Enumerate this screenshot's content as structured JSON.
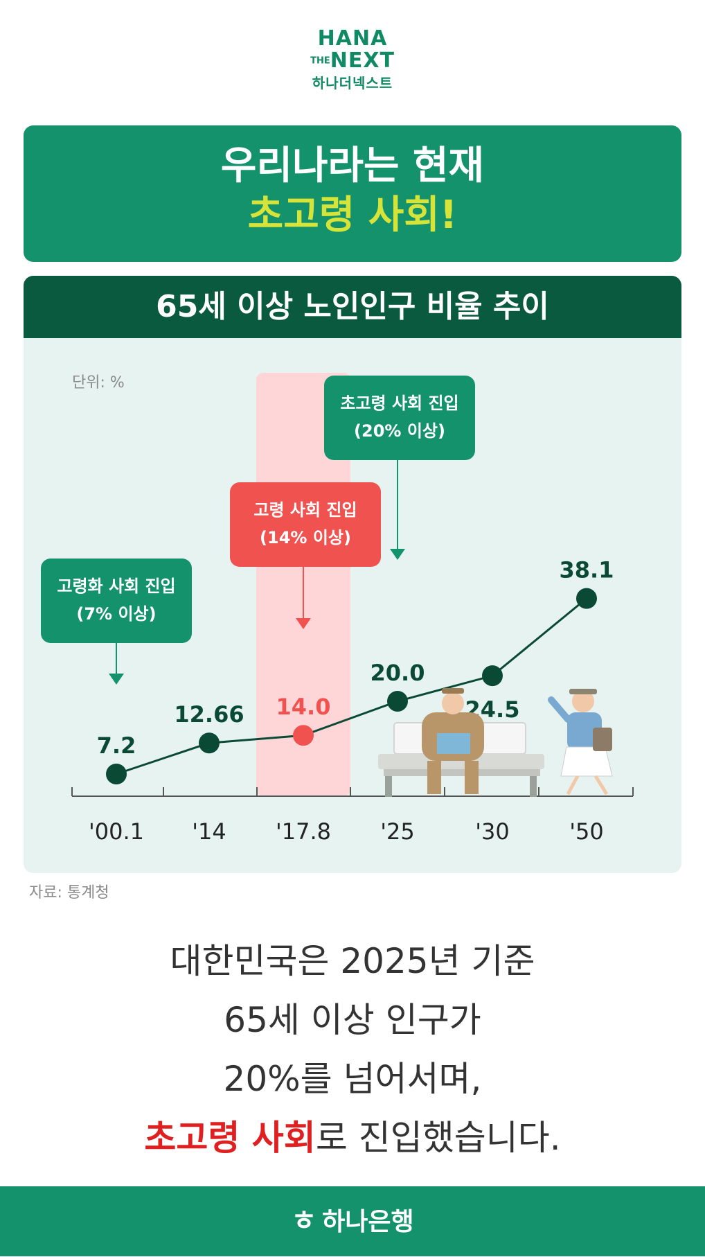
{
  "logo": {
    "line1": "HANA",
    "line2_small": "THE",
    "line2": "NEXT",
    "line3": "하나더넥스트"
  },
  "headline": {
    "line1": "우리나라는 현재",
    "line2": "초고령 사회!"
  },
  "panel_title": "65세 이상 노인인구 비율 추이",
  "chart_data": {
    "type": "line",
    "unit_label": "단위: %",
    "categories": [
      "'00.1",
      "'14",
      "'17.8",
      "'25",
      "'30",
      "'50"
    ],
    "values": [
      7.2,
      12.66,
      14.0,
      20.0,
      24.5,
      38.1
    ],
    "value_labels": [
      "7.2",
      "12.66",
      "14.0",
      "20.0",
      "24.5",
      "38.1"
    ],
    "highlight_index": 2,
    "callouts": [
      {
        "index": 0,
        "line1": "고령화 사회 진입",
        "line2": "(7% 이상)",
        "color": "#13926b"
      },
      {
        "index": 2,
        "line1": "고령 사회 진입",
        "line2": "(14% 이상)",
        "color": "#f0524f"
      },
      {
        "index": 3,
        "line1": "초고령 사회 진입",
        "line2": "(20% 이상)",
        "color": "#13926b"
      }
    ],
    "colors": {
      "line": "#0a4a35",
      "point": "#0a4a35",
      "highlight": "#f0524f",
      "band": "#ffd6d8"
    }
  },
  "source": "자료: 통계청",
  "body": {
    "line1": "대한민국은 2025년 기준",
    "line2": "65세 이상 인구가",
    "line3": "20%를 넘어서며,",
    "line4_highlight": "초고령 사회",
    "line4_rest": "로 진입했습니다."
  },
  "footer": {
    "symbol": "ㅎ",
    "label": "하나은행"
  }
}
